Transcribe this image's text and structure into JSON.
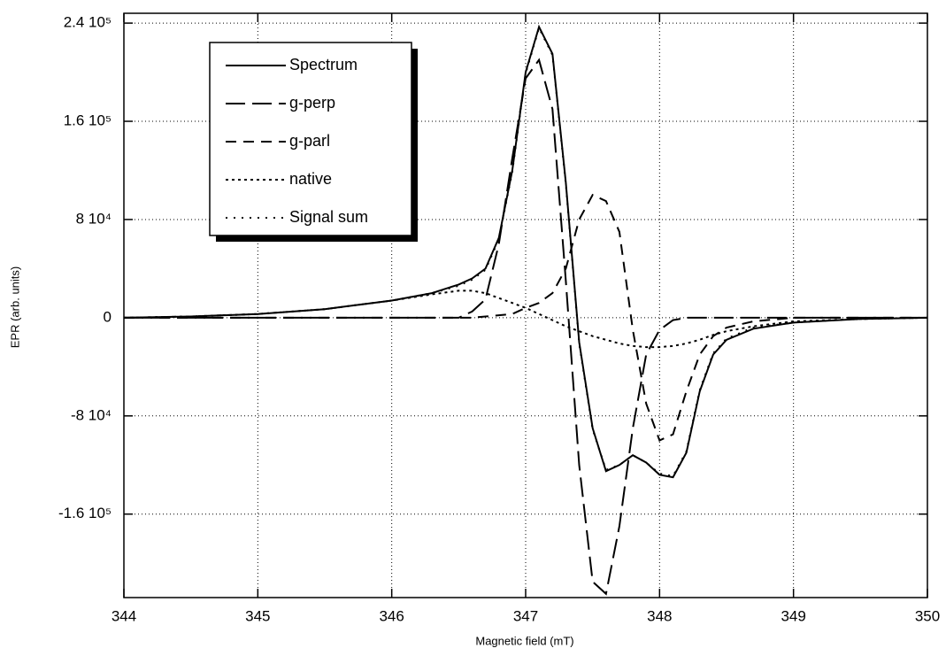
{
  "chart_data": {
    "type": "line",
    "x_label": "Magnetic field (mT)",
    "y_label": "EPR (arb. units)",
    "x": [
      344,
      344.5,
      345,
      345.5,
      346,
      346.3,
      346.5,
      346.6,
      346.7,
      346.8,
      346.9,
      347.0,
      347.1,
      347.2,
      347.3,
      347.4,
      347.5,
      347.6,
      347.7,
      347.8,
      347.9,
      348.0,
      348.1,
      348.2,
      348.3,
      348.4,
      348.5,
      348.7,
      349,
      349.5,
      350
    ],
    "series": [
      {
        "name": "Spectrum",
        "color": "#000000",
        "style": "solid",
        "values": [
          0,
          1000,
          3000,
          7000,
          14000,
          20000,
          27000,
          32000,
          40000,
          65000,
          120000,
          200000,
          237000,
          215000,
          110000,
          -20000,
          -90000,
          -125000,
          -120000,
          -112000,
          -118000,
          -128000,
          -130000,
          -110000,
          -60000,
          -30000,
          -18000,
          -9000,
          -4000,
          -1000,
          0
        ]
      },
      {
        "name": "g-perp",
        "color": "#000000",
        "style": "long-dash",
        "values": [
          0,
          0,
          0,
          0,
          0,
          0,
          0,
          5000,
          15000,
          60000,
          130000,
          195000,
          210000,
          170000,
          30000,
          -120000,
          -215000,
          -225000,
          -170000,
          -90000,
          -30000,
          -10000,
          -2000,
          0,
          0,
          0,
          0,
          0,
          0,
          0,
          0
        ]
      },
      {
        "name": "g-parl",
        "color": "#000000",
        "style": "dash",
        "values": [
          0,
          0,
          0,
          0,
          0,
          0,
          0,
          0,
          1000,
          2000,
          3000,
          8000,
          12000,
          20000,
          40000,
          80000,
          100000,
          95000,
          70000,
          -10000,
          -70000,
          -100000,
          -95000,
          -60000,
          -30000,
          -15000,
          -8000,
          -3000,
          0,
          0,
          0
        ]
      },
      {
        "name": "native",
        "color": "#000000",
        "style": "dot",
        "values": [
          0,
          1000,
          3000,
          7000,
          14000,
          19000,
          22000,
          22000,
          20000,
          16000,
          12000,
          8000,
          3000,
          -2000,
          -7000,
          -11000,
          -15000,
          -18000,
          -21000,
          -23000,
          -24000,
          -24000,
          -23000,
          -21000,
          -18000,
          -14000,
          -11000,
          -7000,
          -3000,
          -1000,
          0
        ]
      },
      {
        "name": "Signal sum",
        "color": "#000000",
        "style": "sparse-dot",
        "values": [
          0,
          1000,
          3000,
          7000,
          14000,
          20000,
          26000,
          31000,
          39000,
          64000,
          119000,
          199000,
          236000,
          214000,
          109000,
          -21000,
          -91000,
          -124000,
          -120000,
          -112000,
          -118000,
          -127000,
          -129000,
          -109000,
          -59000,
          -29000,
          -17000,
          -8000,
          -4000,
          -1000,
          0
        ]
      }
    ],
    "xlim": [
      344,
      350
    ],
    "xticks": [
      344,
      345,
      346,
      347,
      348,
      349,
      350
    ],
    "ylim": [
      -228000,
      248000
    ],
    "yticks": [
      {
        "value": 240000,
        "label": "2.4 10⁵"
      },
      {
        "value": 160000,
        "label": "1.6 10⁵"
      },
      {
        "value": 80000,
        "label": "8 10⁴"
      },
      0,
      {
        "value": -80000,
        "label": "-8 10⁴"
      },
      {
        "value": -160000,
        "label": "-1.6 10⁵"
      }
    ],
    "grid": true
  }
}
